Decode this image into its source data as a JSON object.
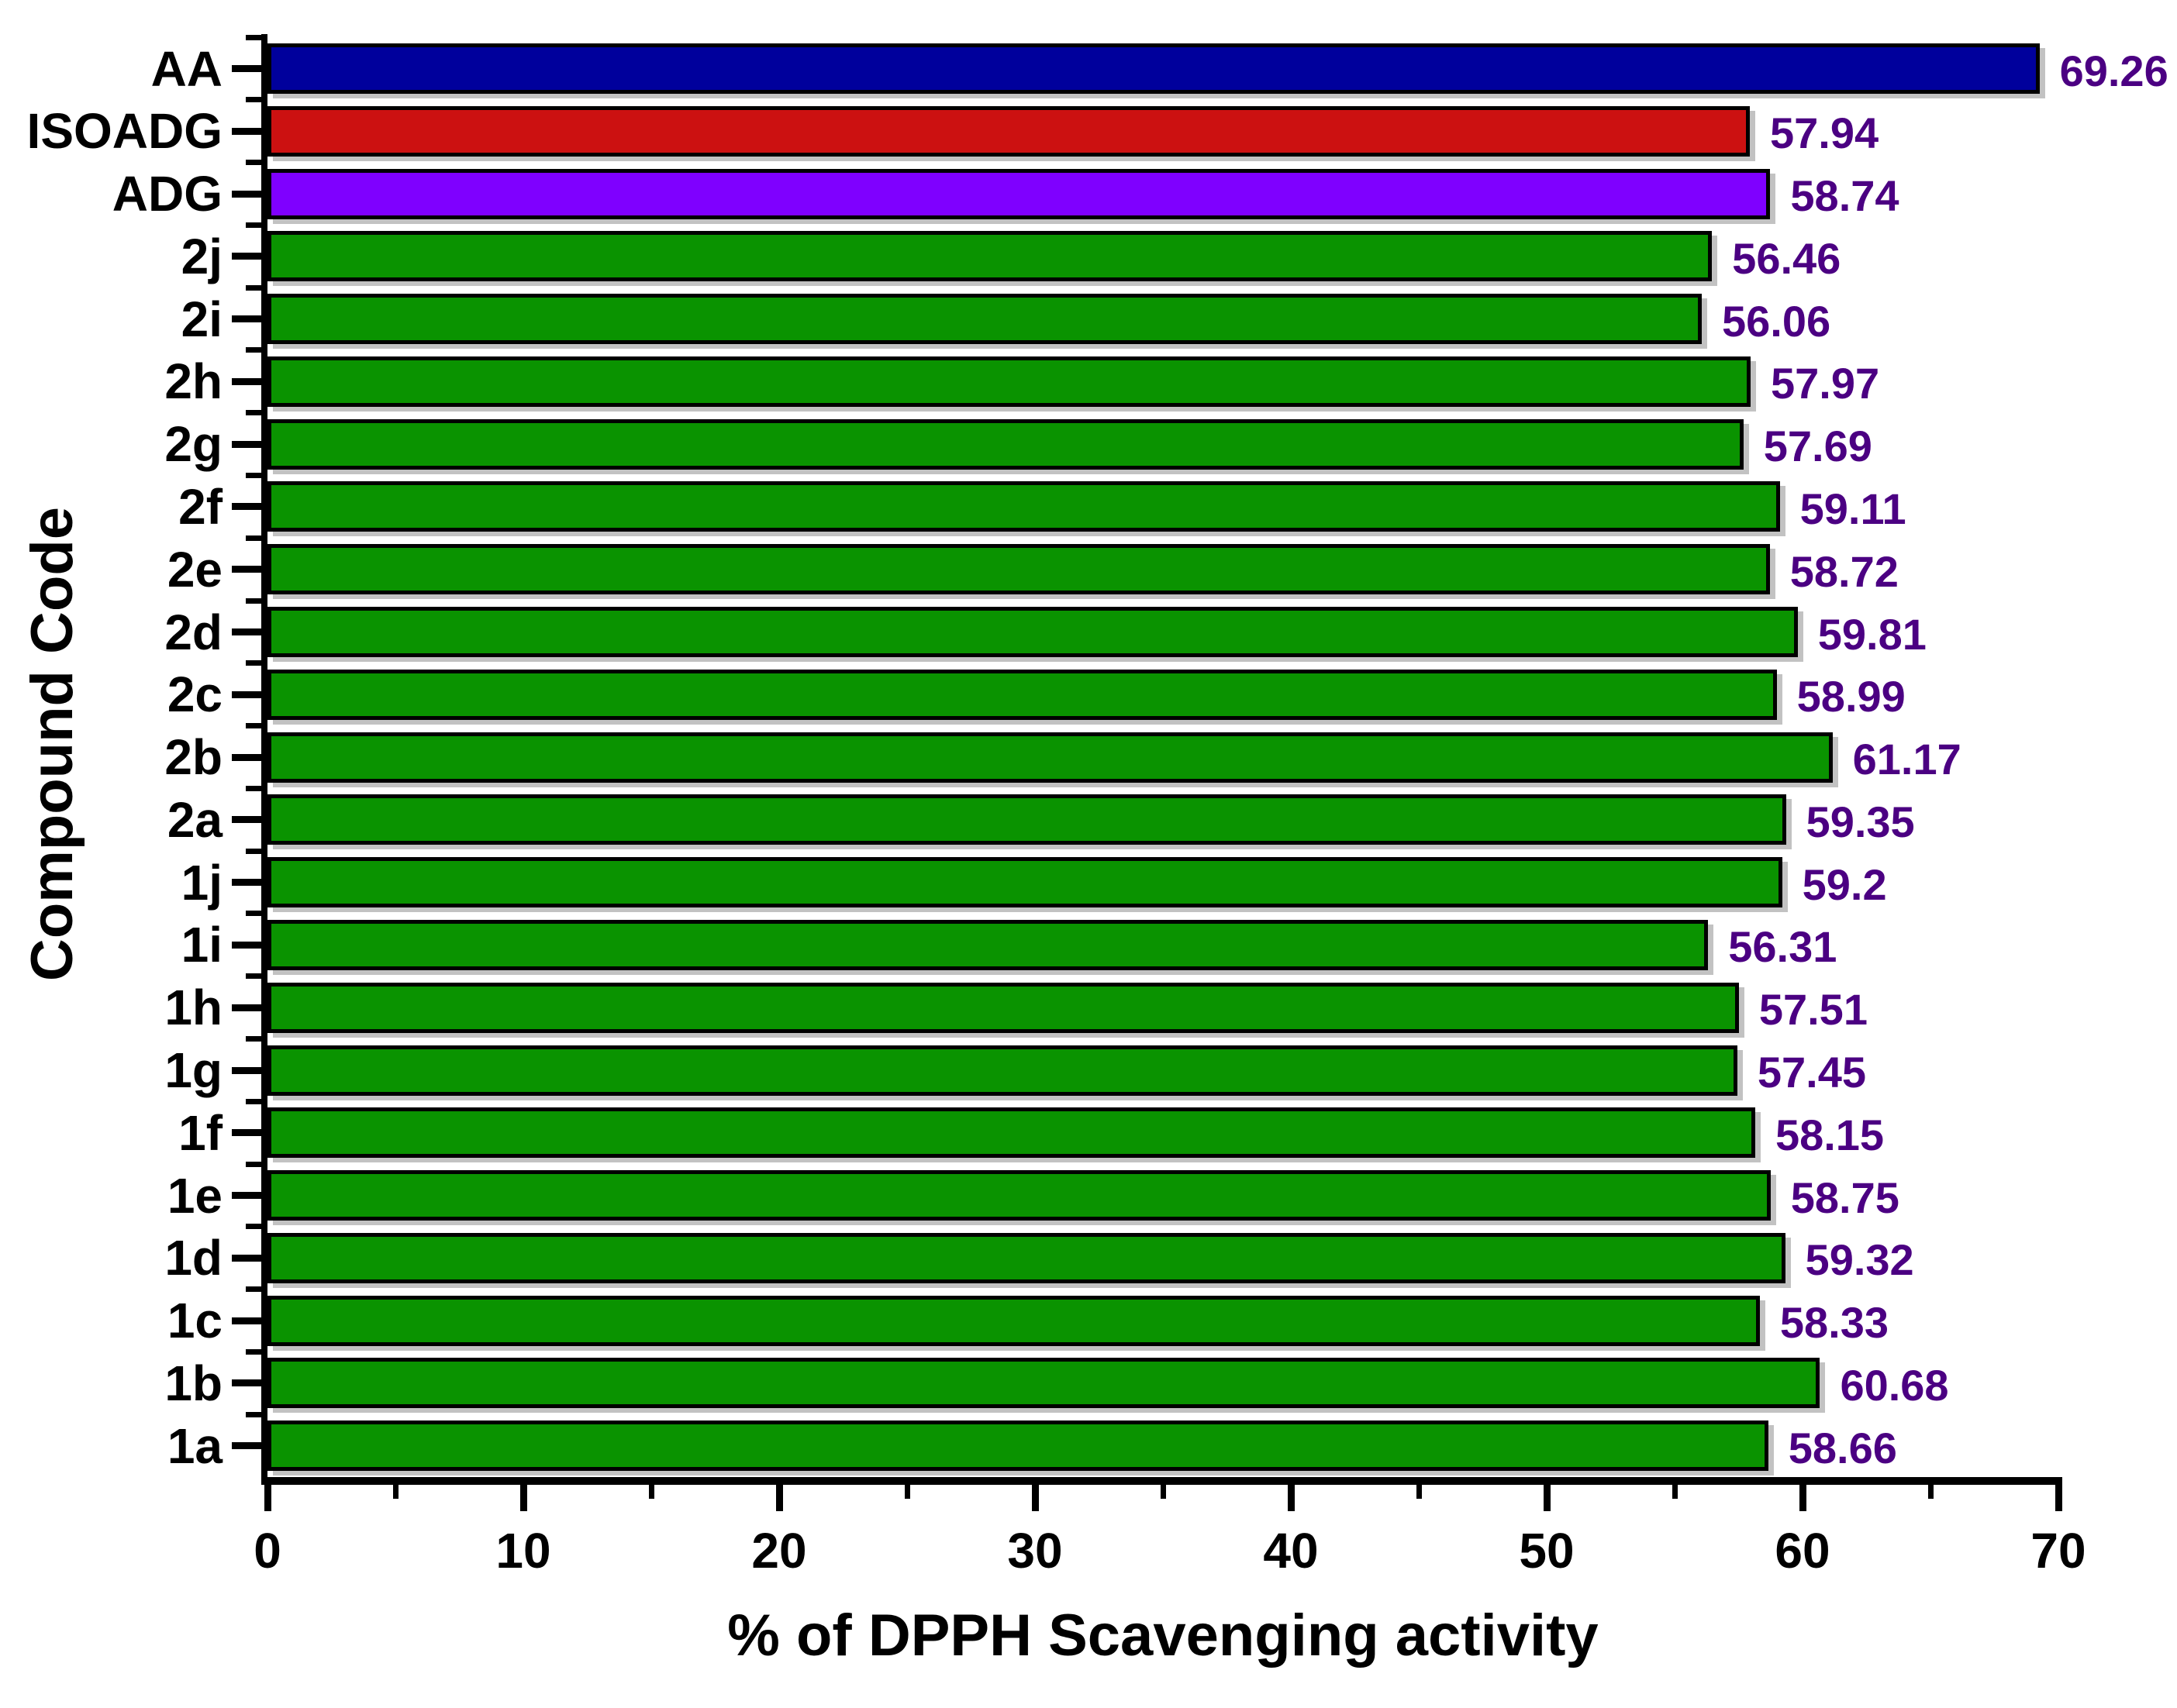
{
  "figure": {
    "background": "#FFFFFF"
  },
  "chart_data": {
    "type": "bar",
    "orientation": "horizontal",
    "title": "",
    "xlabel": "% of DPPH Scavenging activity",
    "ylabel": "Compound Code",
    "xlim": [
      0,
      70
    ],
    "x_major_ticks": [
      0,
      10,
      20,
      30,
      40,
      50,
      60,
      70
    ],
    "x_minor_tick_interval": 5,
    "grid": false,
    "legend": false,
    "bars_top_to_bottom": [
      {
        "category": "AA",
        "value": 69.26,
        "label": "69.26",
        "color_key": "navy"
      },
      {
        "category": "ISOADG",
        "value": 57.94,
        "label": "57.94",
        "color_key": "red"
      },
      {
        "category": "ADG",
        "value": 58.74,
        "label": "58.74",
        "color_key": "violet"
      },
      {
        "category": "2j",
        "value": 56.46,
        "label": "56.46",
        "color_key": "green"
      },
      {
        "category": "2i",
        "value": 56.06,
        "label": "56.06",
        "color_key": "green"
      },
      {
        "category": "2h",
        "value": 57.97,
        "label": "57.97",
        "color_key": "green"
      },
      {
        "category": "2g",
        "value": 57.69,
        "label": "57.69",
        "color_key": "green"
      },
      {
        "category": "2f",
        "value": 59.11,
        "label": "59.11",
        "color_key": "green"
      },
      {
        "category": "2e",
        "value": 58.72,
        "label": "58.72",
        "color_key": "green"
      },
      {
        "category": "2d",
        "value": 59.81,
        "label": "59.81",
        "color_key": "green"
      },
      {
        "category": "2c",
        "value": 58.99,
        "label": "58.99",
        "color_key": "green"
      },
      {
        "category": "2b",
        "value": 61.17,
        "label": "61.17",
        "color_key": "green"
      },
      {
        "category": "2a",
        "value": 59.35,
        "label": "59.35",
        "color_key": "green"
      },
      {
        "category": "1j",
        "value": 59.2,
        "label": "59.2",
        "color_key": "green"
      },
      {
        "category": "1i",
        "value": 56.31,
        "label": "56.31",
        "color_key": "green"
      },
      {
        "category": "1h",
        "value": 57.51,
        "label": "57.51",
        "color_key": "green"
      },
      {
        "category": "1g",
        "value": 57.45,
        "label": "57.45",
        "color_key": "green"
      },
      {
        "category": "1f",
        "value": 58.15,
        "label": "58.15",
        "color_key": "green"
      },
      {
        "category": "1e",
        "value": 58.75,
        "label": "58.75",
        "color_key": "green"
      },
      {
        "category": "1d",
        "value": 59.32,
        "label": "59.32",
        "color_key": "green"
      },
      {
        "category": "1c",
        "value": 58.33,
        "label": "58.33",
        "color_key": "green"
      },
      {
        "category": "1b",
        "value": 60.68,
        "label": "60.68",
        "color_key": "green"
      },
      {
        "category": "1a",
        "value": 58.66,
        "label": "58.66",
        "color_key": "green"
      }
    ],
    "palette": {
      "navy": "#00009C",
      "red": "#CC1111",
      "violet": "#7F00FF",
      "green": "#0A9300"
    },
    "value_label_color": "#4B0082",
    "axis_color": "#000000"
  }
}
